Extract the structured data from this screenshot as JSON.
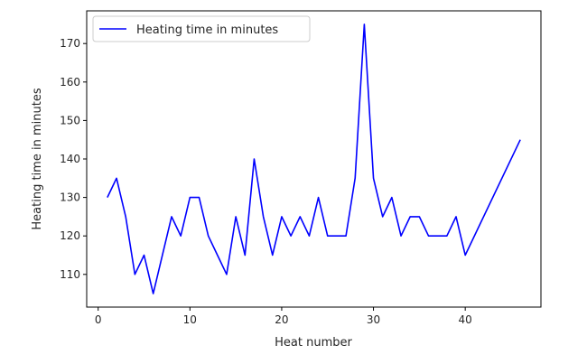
{
  "chart_data": {
    "type": "line",
    "title": "",
    "xlabel": "Heat number",
    "ylabel": "Heating time in minutes",
    "xlim": [
      -1.25,
      48.25
    ],
    "ylim": [
      101.5,
      178.5
    ],
    "xticks": [
      0,
      10,
      20,
      30,
      40
    ],
    "yticks": [
      110,
      120,
      130,
      140,
      150,
      160,
      170
    ],
    "grid": false,
    "legend_position": "top-left",
    "series": [
      {
        "name": "Heating time in minutes",
        "color": "#0000ff",
        "x": [
          1,
          2,
          3,
          4,
          5,
          6,
          7,
          8,
          9,
          10,
          11,
          12,
          13,
          14,
          15,
          16,
          17,
          18,
          19,
          20,
          21,
          22,
          23,
          24,
          25,
          26,
          27,
          28,
          29,
          30,
          31,
          32,
          33,
          34,
          35,
          36,
          37,
          38,
          39,
          40,
          46
        ],
        "y": [
          130,
          135,
          125,
          110,
          115,
          105,
          115,
          125,
          120,
          130,
          130,
          120,
          115,
          110,
          125,
          115,
          140,
          125,
          115,
          125,
          120,
          125,
          120,
          130,
          120,
          120,
          120,
          135,
          175,
          135,
          125,
          130,
          120,
          125,
          125,
          120,
          120,
          120,
          125,
          115,
          145
        ]
      }
    ]
  }
}
